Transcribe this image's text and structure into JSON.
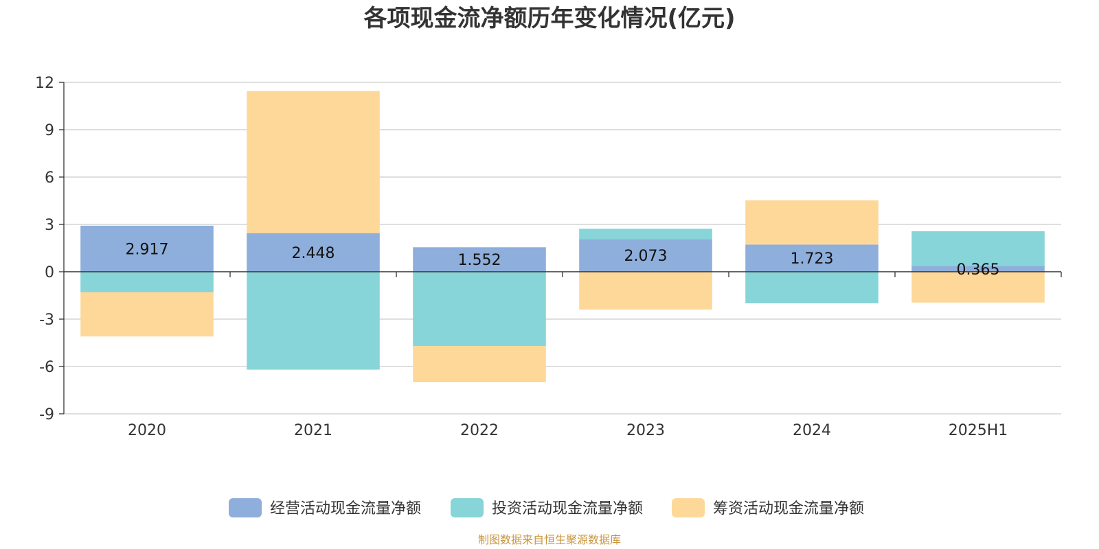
{
  "chart_data": {
    "type": "bar",
    "stacked": true,
    "title": "各项现金流净额历年变化情况(亿元)",
    "categories": [
      "2020",
      "2021",
      "2022",
      "2023",
      "2024",
      "2025H1"
    ],
    "series": [
      {
        "name": "经营活动现金流量净额",
        "color": "#8eaedb",
        "values": [
          2.917,
          2.448,
          1.552,
          2.073,
          1.723,
          0.365
        ]
      },
      {
        "name": "投资活动现金流量净额",
        "color": "#87d5d8",
        "values": [
          -1.3,
          -6.2,
          -4.7,
          0.65,
          -2.0,
          2.2
        ]
      },
      {
        "name": "筹资活动现金流量净额",
        "color": "#fed899",
        "values": [
          -2.8,
          9.0,
          -2.3,
          -2.4,
          2.8,
          -1.95
        ]
      }
    ],
    "data_labels": [
      "2.917",
      "2.448",
      "1.552",
      "2.073",
      "1.723",
      "0.365"
    ],
    "y_ticks": [
      12,
      9,
      6,
      3,
      0,
      -3,
      -6,
      -9
    ],
    "ylim": [
      -9,
      12
    ],
    "grid": true,
    "legend_position": "bottom"
  },
  "source_note": "制图数据来自恒生聚源数据库"
}
